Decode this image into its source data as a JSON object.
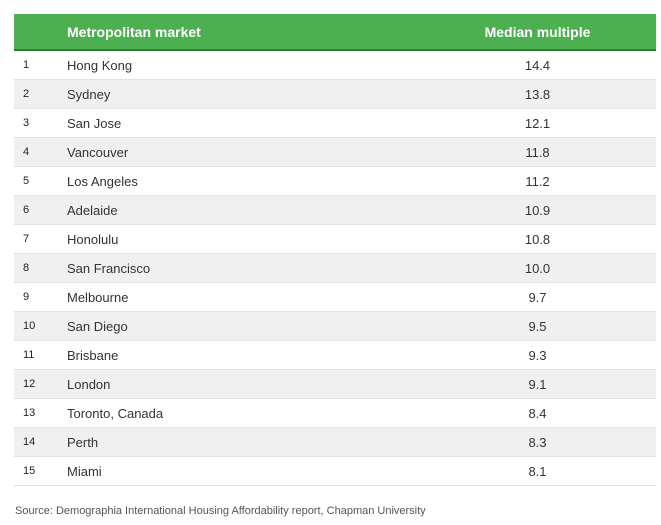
{
  "colors": {
    "header_bg": "#4caf50",
    "header_border": "#2e7d32",
    "row_odd_bg": "#ffffff",
    "row_even_bg": "#f0f0f0",
    "row_border": "#e3e3e3"
  },
  "chart_data": {
    "type": "table",
    "headers": [
      "",
      "Metropolitan market",
      "Median multiple"
    ],
    "rows": [
      {
        "rank": "1",
        "market": "Hong Kong",
        "value": "14.4"
      },
      {
        "rank": "2",
        "market": "Sydney",
        "value": "13.8"
      },
      {
        "rank": "3",
        "market": "San Jose",
        "value": "12.1"
      },
      {
        "rank": "4",
        "market": "Vancouver",
        "value": "11.8"
      },
      {
        "rank": "5",
        "market": "Los Angeles",
        "value": "11.2"
      },
      {
        "rank": "6",
        "market": "Adelaide",
        "value": "10.9"
      },
      {
        "rank": "7",
        "market": "Honolulu",
        "value": "10.8"
      },
      {
        "rank": "8",
        "market": "San Francisco",
        "value": "10.0"
      },
      {
        "rank": "9",
        "market": "Melbourne",
        "value": "9.7"
      },
      {
        "rank": "10",
        "market": "San Diego",
        "value": "9.5"
      },
      {
        "rank": "11",
        "market": "Brisbane",
        "value": "9.3"
      },
      {
        "rank": "12",
        "market": "London",
        "value": "9.1"
      },
      {
        "rank": "13",
        "market": "Toronto, Canada",
        "value": "8.4"
      },
      {
        "rank": "14",
        "market": "Perth",
        "value": "8.3"
      },
      {
        "rank": "15",
        "market": "Miami",
        "value": "8.1"
      }
    ],
    "source": "Source: Demographia International Housing Affordability report, Chapman University"
  }
}
